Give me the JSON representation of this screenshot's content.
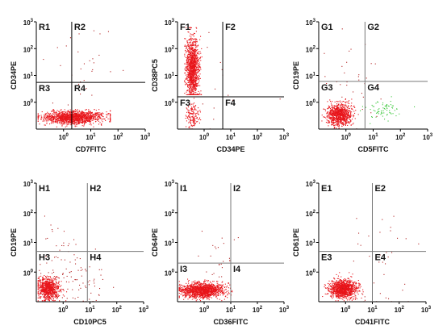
{
  "colors": {
    "population": "#e8141a",
    "population_sparse": "#b22222",
    "green_population": "#3cc83c",
    "axis": "#000000",
    "gate": "#000000",
    "gate_light": "#777777"
  },
  "chart_data": [
    {
      "type": "scatter",
      "id": "A",
      "xlabel": "CD7FITC",
      "ylabel": "CD34PE",
      "xscale": "log",
      "yscale": "log",
      "xlim": [
        0.1,
        1000
      ],
      "ylim": [
        0.1,
        1000
      ],
      "x_ticks": [
        "10^0",
        "10^1",
        "10^2",
        "10^3"
      ],
      "y_ticks": [
        "10^3",
        "10^2",
        "10^1",
        "10^0"
      ],
      "gate": {
        "x": 2.0,
        "y": 5.5,
        "style": "solid-dark"
      },
      "quadrants": [
        "R1",
        "R2",
        "R3",
        "R4"
      ],
      "populations": [
        {
          "color": "population",
          "count": 1400,
          "x_log_center": 0.35,
          "y_log_center": -0.55,
          "x_log_sd": 0.55,
          "y_log_sd": 0.12,
          "x_log_range": [
            -0.95,
            1.7
          ],
          "y_log_range": [
            -0.9,
            -0.25
          ]
        },
        {
          "color": "population_sparse",
          "count": 30,
          "x_log_center": 0.5,
          "y_log_center": 1.2,
          "x_log_sd": 0.9,
          "y_log_sd": 0.8
        }
      ]
    },
    {
      "type": "scatter",
      "id": "B",
      "xlabel": "CD34PE",
      "ylabel": "CD38PC5",
      "xscale": "log",
      "yscale": "log",
      "xlim": [
        0.1,
        1000
      ],
      "ylim": [
        0.1,
        1000
      ],
      "x_ticks": [
        "10^0",
        "10^1",
        "10^2",
        "10^3"
      ],
      "y_ticks": [
        "10^3",
        "10^2",
        "10^1",
        "10^0"
      ],
      "gate": {
        "x": 5.0,
        "y": 1.6,
        "style": "solid-dark"
      },
      "quadrants": [
        "F1",
        "F2",
        "F3",
        "F4"
      ],
      "populations": [
        {
          "color": "population",
          "count": 1200,
          "x_log_center": -0.45,
          "y_log_center": 1.3,
          "x_log_sd": 0.12,
          "y_log_sd": 0.55,
          "x_log_range": [
            -0.75,
            -0.1
          ],
          "y_log_range": [
            0.3,
            2.8
          ]
        },
        {
          "color": "population",
          "count": 150,
          "x_log_center": -0.45,
          "y_log_center": -0.5,
          "x_log_sd": 0.12,
          "y_log_sd": 0.25,
          "x_log_range": [
            -0.75,
            -0.15
          ]
        },
        {
          "color": "population_sparse",
          "count": 15,
          "x_log_center": 0.5,
          "y_log_center": 0.8,
          "x_log_sd": 0.8,
          "y_log_sd": 0.8
        }
      ]
    },
    {
      "type": "scatter",
      "id": "C",
      "xlabel": "CD5FITC",
      "ylabel": "CD19PE",
      "xscale": "log",
      "yscale": "log",
      "xlim": [
        0.1,
        1000
      ],
      "ylim": [
        0.1,
        1000
      ],
      "x_ticks": [
        "10^0",
        "10^1",
        "10^2",
        "10^3"
      ],
      "y_ticks": [
        "10^3",
        "10^2",
        "10^1",
        "10^0"
      ],
      "gate": {
        "x": 5.0,
        "y": 6.0,
        "style": "solid-light"
      },
      "quadrants": [
        "G1",
        "G2",
        "G3",
        "G4"
      ],
      "populations": [
        {
          "color": "population",
          "count": 900,
          "x_log_center": -0.25,
          "y_log_center": -0.45,
          "x_log_sd": 0.22,
          "y_log_sd": 0.2,
          "x_log_range": [
            -0.9,
            0.6
          ],
          "y_log_range": [
            -0.95,
            0.4
          ]
        },
        {
          "color": "green_population",
          "count": 70,
          "x_log_center": 1.35,
          "y_log_center": -0.3,
          "x_log_sd": 0.3,
          "y_log_sd": 0.18
        },
        {
          "color": "population_sparse",
          "count": 35,
          "x_log_center": 0.3,
          "y_log_center": 1.0,
          "x_log_sd": 0.6,
          "y_log_sd": 0.7
        }
      ]
    },
    {
      "type": "scatter",
      "id": "D",
      "xlabel": "CD10PC5",
      "ylabel": "CD19PE",
      "xscale": "log",
      "yscale": "log",
      "xlim": [
        0.1,
        1000
      ],
      "ylim": [
        0.1,
        1000
      ],
      "x_ticks": [
        "10^0",
        "10^1",
        "10^2",
        "10^3"
      ],
      "y_ticks": [
        "10^3",
        "10^2",
        "10^1",
        "10^0"
      ],
      "gate": {
        "x": 8.0,
        "y": 5.0,
        "style": "solid-light"
      },
      "quadrants": [
        "H1",
        "H2",
        "H3",
        "H4"
      ],
      "populations": [
        {
          "color": "population",
          "count": 800,
          "x_log_center": -0.55,
          "y_log_center": -0.55,
          "x_log_sd": 0.2,
          "y_log_sd": 0.18,
          "x_log_range": [
            -0.95,
            0.2
          ],
          "y_log_range": [
            -0.95,
            0.1
          ]
        },
        {
          "color": "population_sparse",
          "count": 90,
          "x_log_center": 0.4,
          "y_log_center": -0.3,
          "x_log_sd": 0.6,
          "y_log_sd": 0.4
        },
        {
          "color": "population_sparse",
          "count": 25,
          "x_log_center": -0.3,
          "y_log_center": 0.9,
          "x_log_sd": 0.4,
          "y_log_sd": 0.5
        }
      ]
    },
    {
      "type": "scatter",
      "id": "E",
      "xlabel": "CD36FITC",
      "ylabel": "CD64PE",
      "xscale": "log",
      "yscale": "log",
      "xlim": [
        0.1,
        1000
      ],
      "ylim": [
        0.1,
        1000
      ],
      "x_ticks": [
        "10^0",
        "10^1",
        "10^2",
        "10^3"
      ],
      "y_ticks": [
        "10^3",
        "10^2",
        "10^1",
        "10^0"
      ],
      "gate": {
        "x": 10.0,
        "y": 2.0,
        "style": "solid-light"
      },
      "quadrants": [
        "I1",
        "I2",
        "I3",
        "I4"
      ],
      "populations": [
        {
          "color": "population",
          "count": 1400,
          "x_log_center": -0.1,
          "y_log_center": -0.6,
          "x_log_sd": 0.4,
          "y_log_sd": 0.12,
          "x_log_range": [
            -0.95,
            1.2
          ],
          "y_log_range": [
            -0.95,
            -0.15
          ]
        },
        {
          "color": "population_sparse",
          "count": 25,
          "x_log_center": 0.6,
          "y_log_center": 0.4,
          "x_log_sd": 0.6,
          "y_log_sd": 0.6
        }
      ]
    },
    {
      "type": "scatter",
      "id": "F",
      "xlabel": "CD41FITC",
      "ylabel": "CD61PE",
      "xscale": "log",
      "yscale": "log",
      "xlim": [
        0.1,
        1000
      ],
      "ylim": [
        0.1,
        1000
      ],
      "x_ticks": [
        "10^0",
        "10^1",
        "10^2",
        "10^3"
      ],
      "y_ticks": [
        "10^3",
        "10^2",
        "10^1",
        "10^0"
      ],
      "gate": {
        "x": 10.0,
        "y": 5.0,
        "style": "solid-light"
      },
      "quadrants": [
        "E1",
        "E2",
        "E3",
        "E4"
      ],
      "populations": [
        {
          "color": "population",
          "count": 1100,
          "x_log_center": -0.1,
          "y_log_center": -0.55,
          "x_log_sd": 0.25,
          "y_log_sd": 0.15,
          "x_log_range": [
            -0.9,
            0.7
          ],
          "y_log_range": [
            -0.95,
            0.0
          ]
        },
        {
          "color": "population_sparse",
          "count": 40,
          "x_log_center": 1.2,
          "y_log_center": 0.3,
          "x_log_sd": 0.5,
          "y_log_sd": 0.9
        }
      ]
    }
  ]
}
